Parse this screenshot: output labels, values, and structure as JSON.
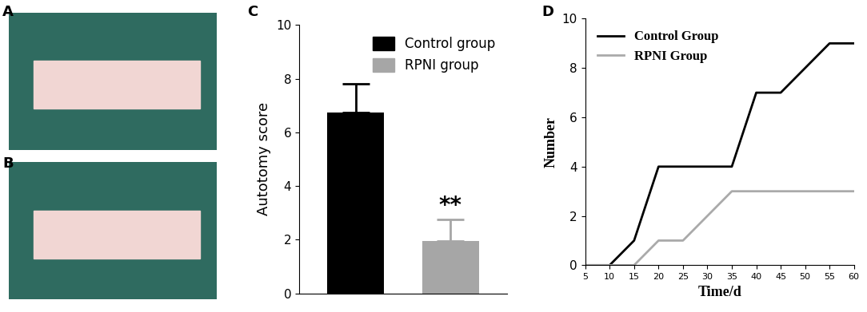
{
  "chart_data": [
    {
      "type": "image",
      "title": "A"
    },
    {
      "type": "image",
      "title": "B"
    },
    {
      "type": "bar",
      "title": "C",
      "categories": [
        null,
        null
      ],
      "series": [
        {
          "name": "Control group",
          "color": "#000000",
          "values": [
            6.75,
            null
          ],
          "errors": [
            1.05,
            null
          ]
        },
        {
          "name": "RPNI group",
          "color": "#a6a6a6",
          "values": [
            null,
            1.95
          ],
          "errors": [
            null,
            0.8
          ]
        }
      ],
      "y_label": "Autotomy score",
      "ylim": [
        0,
        10
      ],
      "yticks": [
        0,
        2,
        4,
        6,
        8,
        10
      ],
      "annotations": [
        {
          "text": "**",
          "category": 1
        }
      ],
      "legend": "upper right",
      "tick_labels": "y"
    },
    {
      "type": "line",
      "title": "D",
      "x": [
        5,
        10,
        15,
        20,
        25,
        30,
        35,
        40,
        45,
        50,
        55,
        60
      ],
      "series": [
        {
          "name": "Control Group",
          "color": "#000000",
          "values": [
            0,
            0,
            1,
            4,
            4,
            4,
            4,
            7,
            7,
            8,
            9,
            9
          ]
        },
        {
          "name": "RPNI Group",
          "color": "#aaaaaa",
          "values": [
            0,
            0,
            0,
            1,
            1,
            2,
            3,
            3,
            3,
            3,
            3,
            3
          ]
        }
      ],
      "x_label": "Time/d",
      "y_label": "Number",
      "xlim": [
        5,
        60
      ],
      "xticks": [
        5,
        10,
        15,
        20,
        25,
        30,
        35,
        40,
        45,
        50,
        55,
        60
      ],
      "ylim": [
        0,
        10
      ],
      "yticks": [
        0,
        2,
        4,
        6,
        8,
        10
      ],
      "legend": "upper left"
    }
  ]
}
